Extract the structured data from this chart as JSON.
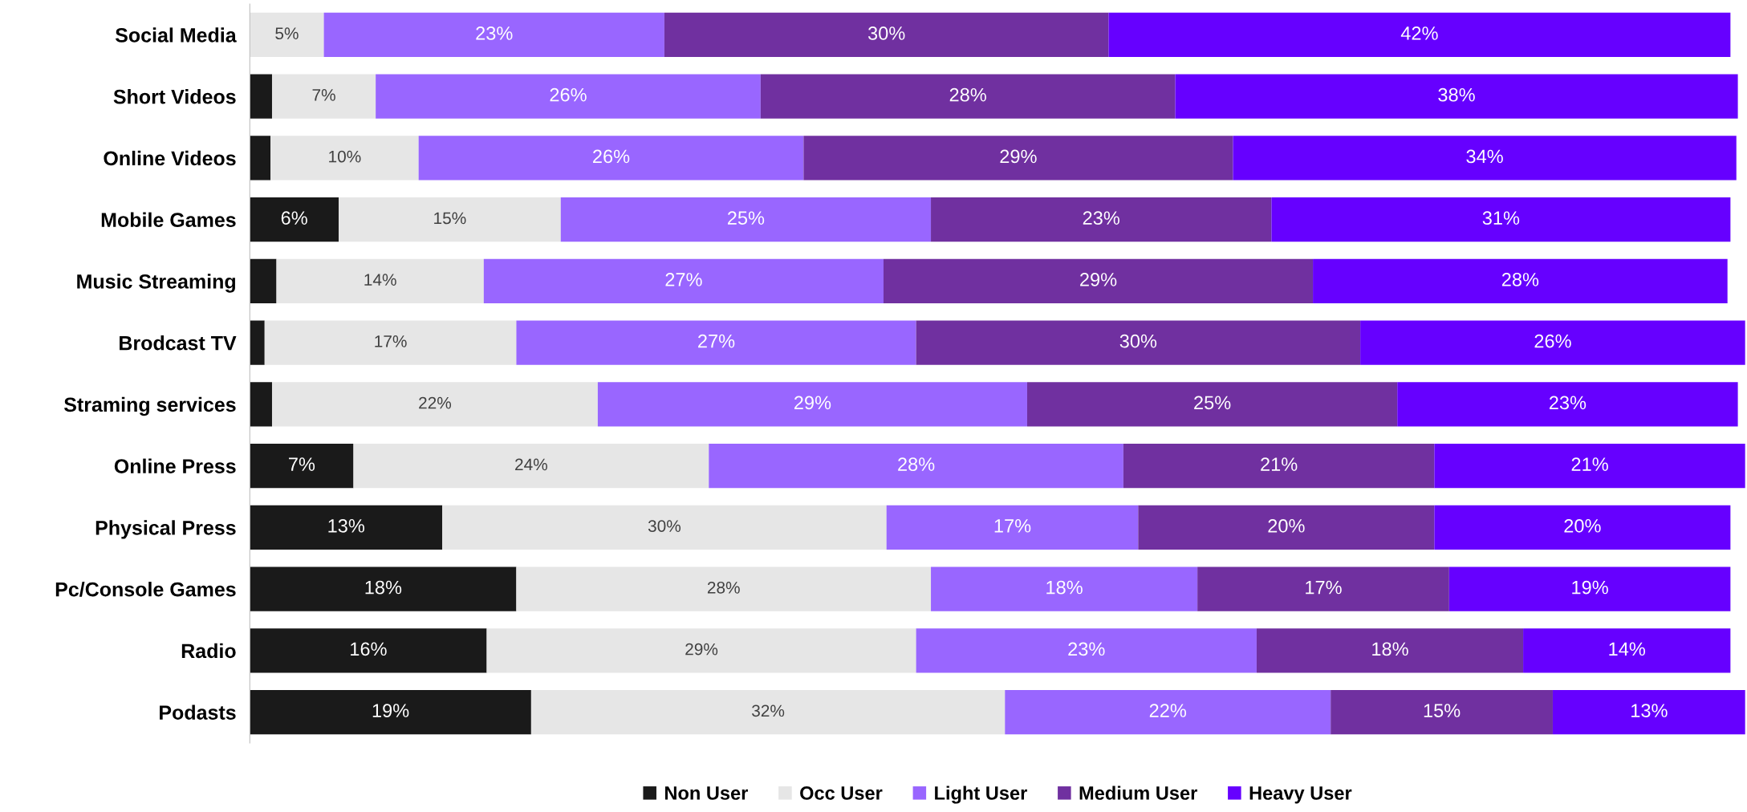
{
  "chart_data": {
    "type": "bar",
    "orientation": "horizontal",
    "stacked": true,
    "legend": "bottom",
    "grid": false,
    "tick_labels": "y",
    "categories": [
      "Social Media",
      "Short Videos",
      "Online Videos",
      "Mobile Games",
      "Music Streaming",
      "Brodcast TV",
      "Straming services",
      "Online Press",
      "Physical Press",
      "Pc/Console Games",
      "Radio",
      "Podasts"
    ],
    "series": [
      {
        "name": "Non User",
        "color": "#1a1a1a",
        "values": [
          0,
          1.5,
          1.4,
          6,
          1.8,
          1,
          1.5,
          7,
          13,
          18,
          16,
          19
        ],
        "value_labels": [
          null,
          null,
          null,
          "6%",
          null,
          null,
          null,
          "7%",
          "13%",
          "18%",
          "16%",
          "19%"
        ]
      },
      {
        "name": "Occ User",
        "color": "#e6e6e6",
        "values": [
          5,
          7,
          10,
          15,
          14,
          17,
          22,
          24,
          30,
          28,
          29,
          32
        ],
        "value_labels": [
          "5%",
          "7%",
          "10%",
          "15%",
          "14%",
          "17%",
          "22%",
          "24%",
          "30%",
          "28%",
          "29%",
          "32%"
        ]
      },
      {
        "name": "Light User",
        "color": "#9966ff",
        "values": [
          23,
          26,
          26,
          25,
          27,
          27,
          29,
          28,
          17,
          18,
          23,
          22
        ],
        "value_labels": [
          "23%",
          "26%",
          "26%",
          "25%",
          "27%",
          "27%",
          "29%",
          "28%",
          "17%",
          "18%",
          "23%",
          "22%"
        ]
      },
      {
        "name": "Medium User",
        "color": "#7030a0",
        "values": [
          30,
          28,
          29,
          23,
          29,
          30,
          25,
          21,
          20,
          17,
          18,
          15
        ],
        "value_labels": [
          "30%",
          "28%",
          "29%",
          "23%",
          "29%",
          "30%",
          "25%",
          "21%",
          "20%",
          "17%",
          "18%",
          "15%"
        ]
      },
      {
        "name": "Heavy User",
        "color": "#6600ff",
        "values": [
          42,
          38,
          34,
          31,
          28,
          26,
          23,
          21,
          20,
          19,
          14,
          13
        ],
        "value_labels": [
          "42%",
          "38%",
          "34%",
          "31%",
          "28%",
          "26%",
          "23%",
          "21%",
          "20%",
          "19%",
          "14%",
          "13%"
        ]
      }
    ]
  }
}
